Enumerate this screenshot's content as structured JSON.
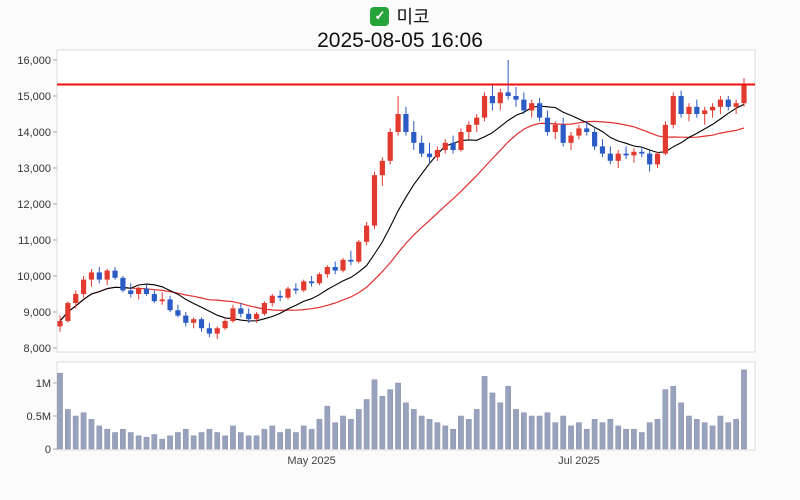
{
  "header": {
    "check_glyph": "✓",
    "checkbox_color": "#27a439",
    "title": "미코",
    "subtitle": "2025-08-05 16:06"
  },
  "chart_data": {
    "type": "candlestick_with_volume",
    "title": "미코",
    "timestamp": "2025-08-05 16:06",
    "legend_position": "none",
    "grid": false,
    "price_axis": {
      "min": 8000,
      "max": 16000,
      "ticks": [
        16000,
        15000,
        14000,
        13000,
        12000,
        11000,
        10000,
        9000,
        8000
      ],
      "tick_labels": [
        "16,000",
        "15,000",
        "14,000",
        "13,000",
        "12,000",
        "11,000",
        "10,000",
        "9,000",
        "8,000"
      ]
    },
    "volume_axis": {
      "unit": "millions_of_shares",
      "ticks": [
        1,
        0.5,
        0
      ],
      "tick_labels": [
        "1M",
        "0.5M",
        "0"
      ]
    },
    "x_axis": {
      "ticks": [
        {
          "label": "May 2025",
          "index": 32
        },
        {
          "label": "Jul 2025",
          "index": 66
        }
      ]
    },
    "reference_line": {
      "price": 15320,
      "color": "#f20d0d"
    },
    "moving_averages": {
      "short_window": 10,
      "long_window": 20
    },
    "colors": {
      "up": "#e23a2e",
      "down": "#2b5bc4",
      "ma_short": "#000000",
      "ma_long": "#e03030",
      "volume": "#99a2bc",
      "volume_edge": "#8a93b0",
      "axis_text": "#333333",
      "plot_border": "#dddddd",
      "plot_fill": "#ffffff"
    },
    "candles_format": [
      "open",
      "high",
      "low",
      "close",
      "volume_millions"
    ],
    "candles": [
      [
        8600,
        8900,
        8450,
        8750,
        1.15
      ],
      [
        8750,
        9300,
        8700,
        9250,
        0.6
      ],
      [
        9250,
        9600,
        9100,
        9500,
        0.5
      ],
      [
        9500,
        10000,
        9400,
        9900,
        0.55
      ],
      [
        9900,
        10200,
        9700,
        10100,
        0.45
      ],
      [
        10100,
        10250,
        9800,
        9900,
        0.35
      ],
      [
        9900,
        10200,
        9750,
        10150,
        0.3
      ],
      [
        10150,
        10250,
        9900,
        9950,
        0.25
      ],
      [
        9950,
        10000,
        9550,
        9600,
        0.3
      ],
      [
        9600,
        9800,
        9400,
        9500,
        0.25
      ],
      [
        9500,
        9700,
        9350,
        9650,
        0.2
      ],
      [
        9650,
        9750,
        9450,
        9500,
        0.18
      ],
      [
        9500,
        9600,
        9250,
        9300,
        0.22
      ],
      [
        9300,
        9550,
        9200,
        9350,
        0.15
      ],
      [
        9350,
        9450,
        9000,
        9050,
        0.2
      ],
      [
        9050,
        9200,
        8850,
        8900,
        0.25
      ],
      [
        8900,
        9000,
        8600,
        8700,
        0.3
      ],
      [
        8700,
        8850,
        8550,
        8800,
        0.2
      ],
      [
        8800,
        8850,
        8450,
        8550,
        0.25
      ],
      [
        8550,
        8700,
        8300,
        8400,
        0.3
      ],
      [
        8400,
        8600,
        8250,
        8550,
        0.25
      ],
      [
        8550,
        8800,
        8500,
        8750,
        0.2
      ],
      [
        8750,
        9200,
        8700,
        9100,
        0.35
      ],
      [
        9100,
        9250,
        8850,
        8950,
        0.25
      ],
      [
        8950,
        9100,
        8700,
        8800,
        0.2
      ],
      [
        8800,
        9000,
        8700,
        8950,
        0.2
      ],
      [
        8950,
        9300,
        8900,
        9250,
        0.3
      ],
      [
        9250,
        9500,
        9150,
        9450,
        0.35
      ],
      [
        9450,
        9600,
        9300,
        9400,
        0.25
      ],
      [
        9400,
        9700,
        9350,
        9650,
        0.3
      ],
      [
        9650,
        9800,
        9500,
        9600,
        0.25
      ],
      [
        9600,
        9900,
        9550,
        9850,
        0.35
      ],
      [
        9850,
        10000,
        9700,
        9800,
        0.3
      ],
      [
        9800,
        10100,
        9750,
        10050,
        0.45
      ],
      [
        10050,
        10300,
        9950,
        10250,
        0.65
      ],
      [
        10250,
        10400,
        10050,
        10150,
        0.4
      ],
      [
        10150,
        10500,
        10100,
        10450,
        0.5
      ],
      [
        10450,
        10700,
        10300,
        10400,
        0.45
      ],
      [
        10400,
        11000,
        10350,
        10950,
        0.6
      ],
      [
        10950,
        11500,
        10850,
        11400,
        0.75
      ],
      [
        11400,
        12900,
        11300,
        12800,
        1.05
      ],
      [
        12800,
        13300,
        12500,
        13200,
        0.8
      ],
      [
        13200,
        14100,
        13100,
        14000,
        0.9
      ],
      [
        14000,
        15000,
        13900,
        14500,
        1.0
      ],
      [
        14500,
        14700,
        13900,
        14000,
        0.7
      ],
      [
        14000,
        14300,
        13500,
        13700,
        0.6
      ],
      [
        13700,
        13900,
        13300,
        13400,
        0.5
      ],
      [
        13400,
        13700,
        13100,
        13300,
        0.45
      ],
      [
        13300,
        13600,
        13200,
        13500,
        0.4
      ],
      [
        13500,
        13800,
        13400,
        13700,
        0.35
      ],
      [
        13700,
        13900,
        13400,
        13500,
        0.3
      ],
      [
        13500,
        14100,
        13450,
        14000,
        0.5
      ],
      [
        14000,
        14300,
        13800,
        14200,
        0.45
      ],
      [
        14200,
        14500,
        14000,
        14400,
        0.6
      ],
      [
        14400,
        15100,
        14300,
        15000,
        1.1
      ],
      [
        15000,
        15300,
        14600,
        14800,
        0.85
      ],
      [
        14800,
        15200,
        14600,
        15100,
        0.7
      ],
      [
        15100,
        16000,
        14900,
        15000,
        0.95
      ],
      [
        15000,
        15250,
        14700,
        14900,
        0.6
      ],
      [
        14900,
        15100,
        14500,
        14600,
        0.55
      ],
      [
        14600,
        14900,
        14400,
        14800,
        0.5
      ],
      [
        14800,
        14950,
        14300,
        14400,
        0.5
      ],
      [
        14400,
        14600,
        13900,
        14000,
        0.55
      ],
      [
        14000,
        14300,
        13800,
        14200,
        0.4
      ],
      [
        14200,
        14400,
        13600,
        13700,
        0.5
      ],
      [
        13700,
        14000,
        13500,
        13900,
        0.35
      ],
      [
        13900,
        14200,
        13800,
        14100,
        0.4
      ],
      [
        14100,
        14300,
        13900,
        14000,
        0.3
      ],
      [
        14000,
        14100,
        13500,
        13600,
        0.45
      ],
      [
        13600,
        13800,
        13300,
        13400,
        0.4
      ],
      [
        13400,
        13600,
        13100,
        13200,
        0.45
      ],
      [
        13200,
        13500,
        13000,
        13400,
        0.35
      ],
      [
        13400,
        13600,
        13250,
        13350,
        0.3
      ],
      [
        13350,
        13550,
        13150,
        13450,
        0.3
      ],
      [
        13450,
        13600,
        13300,
        13400,
        0.25
      ],
      [
        13400,
        13500,
        12900,
        13100,
        0.4
      ],
      [
        13100,
        13450,
        13000,
        13400,
        0.45
      ],
      [
        13400,
        14300,
        13350,
        14200,
        0.9
      ],
      [
        14200,
        15100,
        14100,
        15000,
        0.95
      ],
      [
        15000,
        15150,
        14400,
        14500,
        0.7
      ],
      [
        14500,
        14800,
        14300,
        14700,
        0.5
      ],
      [
        14700,
        14900,
        14400,
        14500,
        0.45
      ],
      [
        14500,
        14700,
        14200,
        14600,
        0.4
      ],
      [
        14600,
        14800,
        14400,
        14700,
        0.35
      ],
      [
        14700,
        15000,
        14500,
        14900,
        0.5
      ],
      [
        14900,
        15000,
        14600,
        14700,
        0.4
      ],
      [
        14700,
        14900,
        14500,
        14800,
        0.45
      ],
      [
        14800,
        15500,
        14700,
        15300,
        1.2
      ]
    ]
  }
}
